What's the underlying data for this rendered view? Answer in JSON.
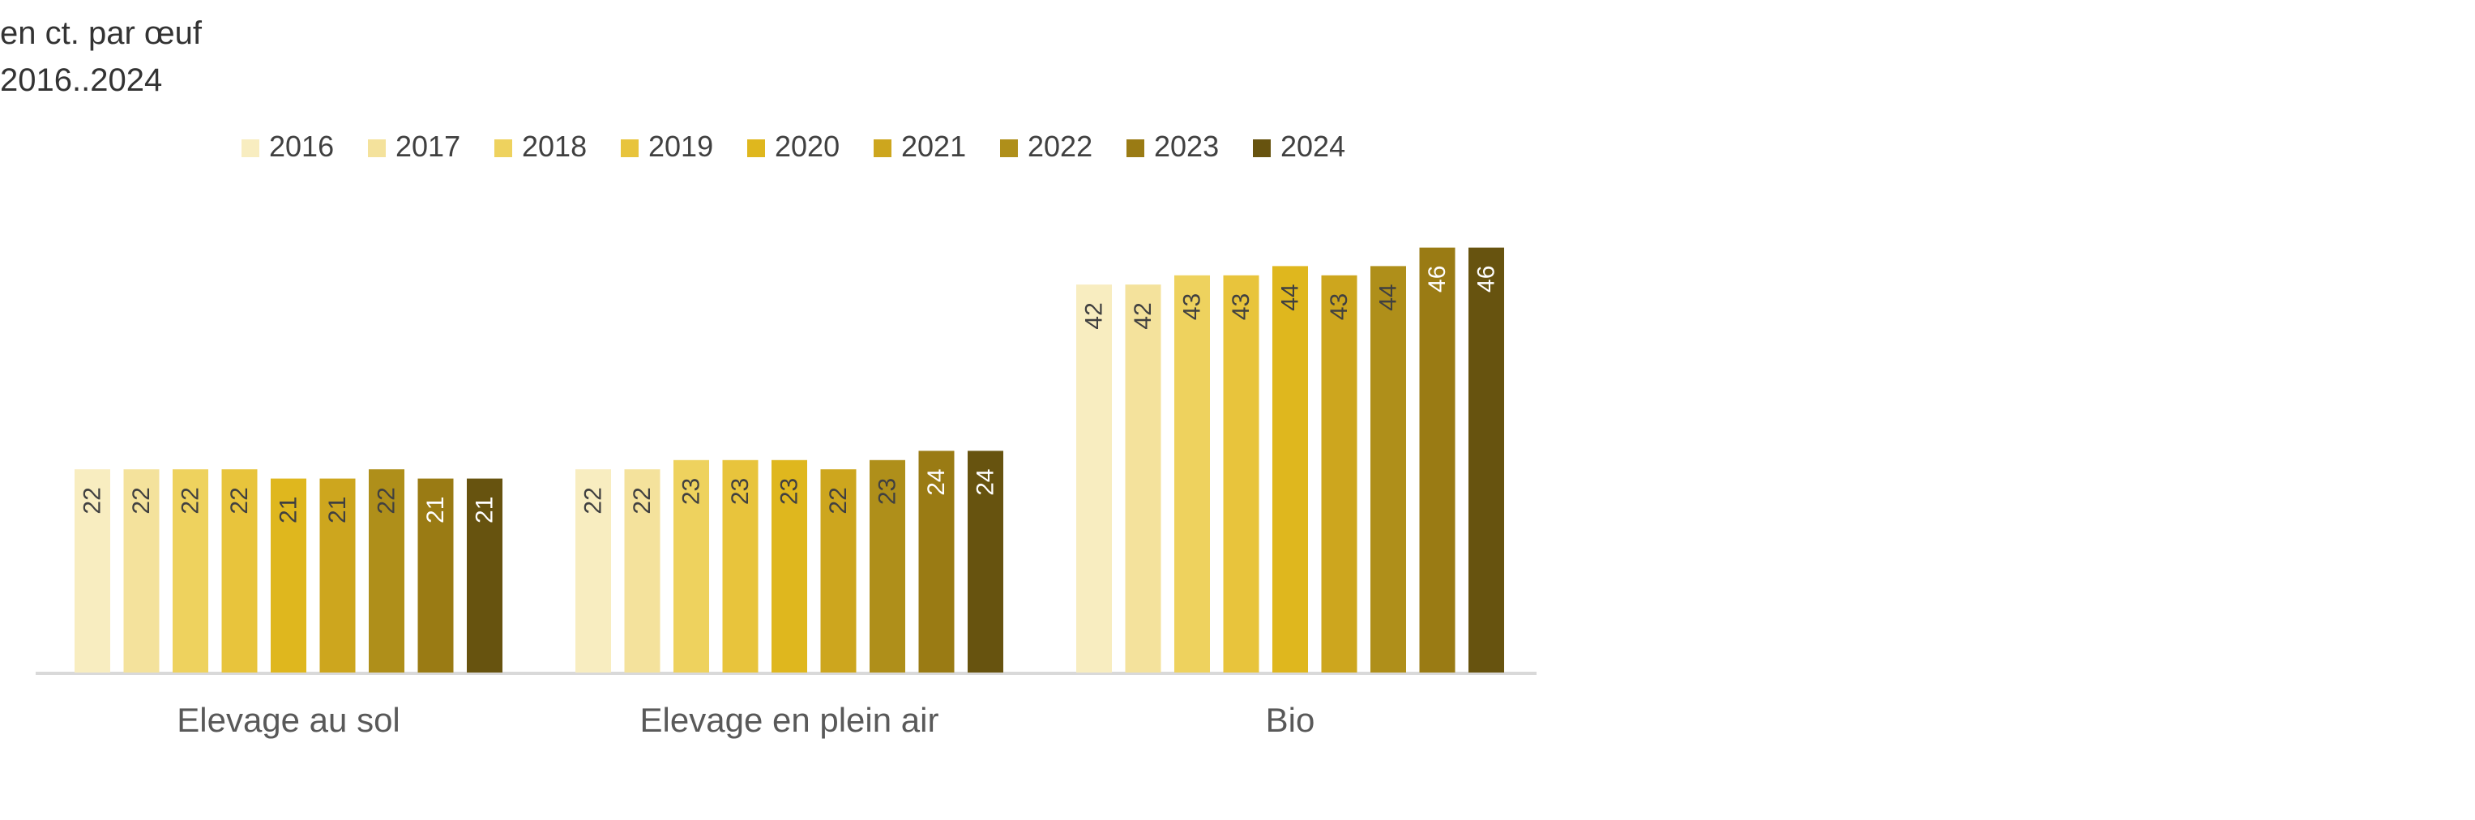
{
  "header": {
    "unit": "en ct. par œuf",
    "period": "2016..2024"
  },
  "chart_data": {
    "type": "bar",
    "title": "",
    "xlabel": "",
    "ylabel": "",
    "ylim": [
      0,
      50
    ],
    "grid": false,
    "legend_position": "top",
    "categories": [
      "Elevage au sol",
      "Elevage en plein air",
      "Bio"
    ],
    "series": [
      {
        "name": "2016",
        "color": "#F8EDC0",
        "label_color": "#404040",
        "values": [
          22,
          22,
          42
        ]
      },
      {
        "name": "2017",
        "color": "#F4E29C",
        "label_color": "#404040",
        "values": [
          22,
          22,
          42
        ]
      },
      {
        "name": "2018",
        "color": "#EED25E",
        "label_color": "#404040",
        "values": [
          22,
          23,
          43
        ]
      },
      {
        "name": "2019",
        "color": "#E8C43C",
        "label_color": "#404040",
        "values": [
          22,
          23,
          43
        ]
      },
      {
        "name": "2020",
        "color": "#DFB71E",
        "label_color": "#404040",
        "values": [
          21,
          23,
          44
        ]
      },
      {
        "name": "2021",
        "color": "#CDA61E",
        "label_color": "#404040",
        "values": [
          21,
          22,
          43
        ]
      },
      {
        "name": "2022",
        "color": "#AF8F1A",
        "label_color": "#404040",
        "values": [
          22,
          23,
          44
        ]
      },
      {
        "name": "2023",
        "color": "#9A7B14",
        "label_color": "#ffffff",
        "values": [
          21,
          24,
          46
        ]
      },
      {
        "name": "2024",
        "color": "#67530F",
        "label_color": "#ffffff",
        "values": [
          21,
          24,
          46
        ]
      }
    ]
  }
}
